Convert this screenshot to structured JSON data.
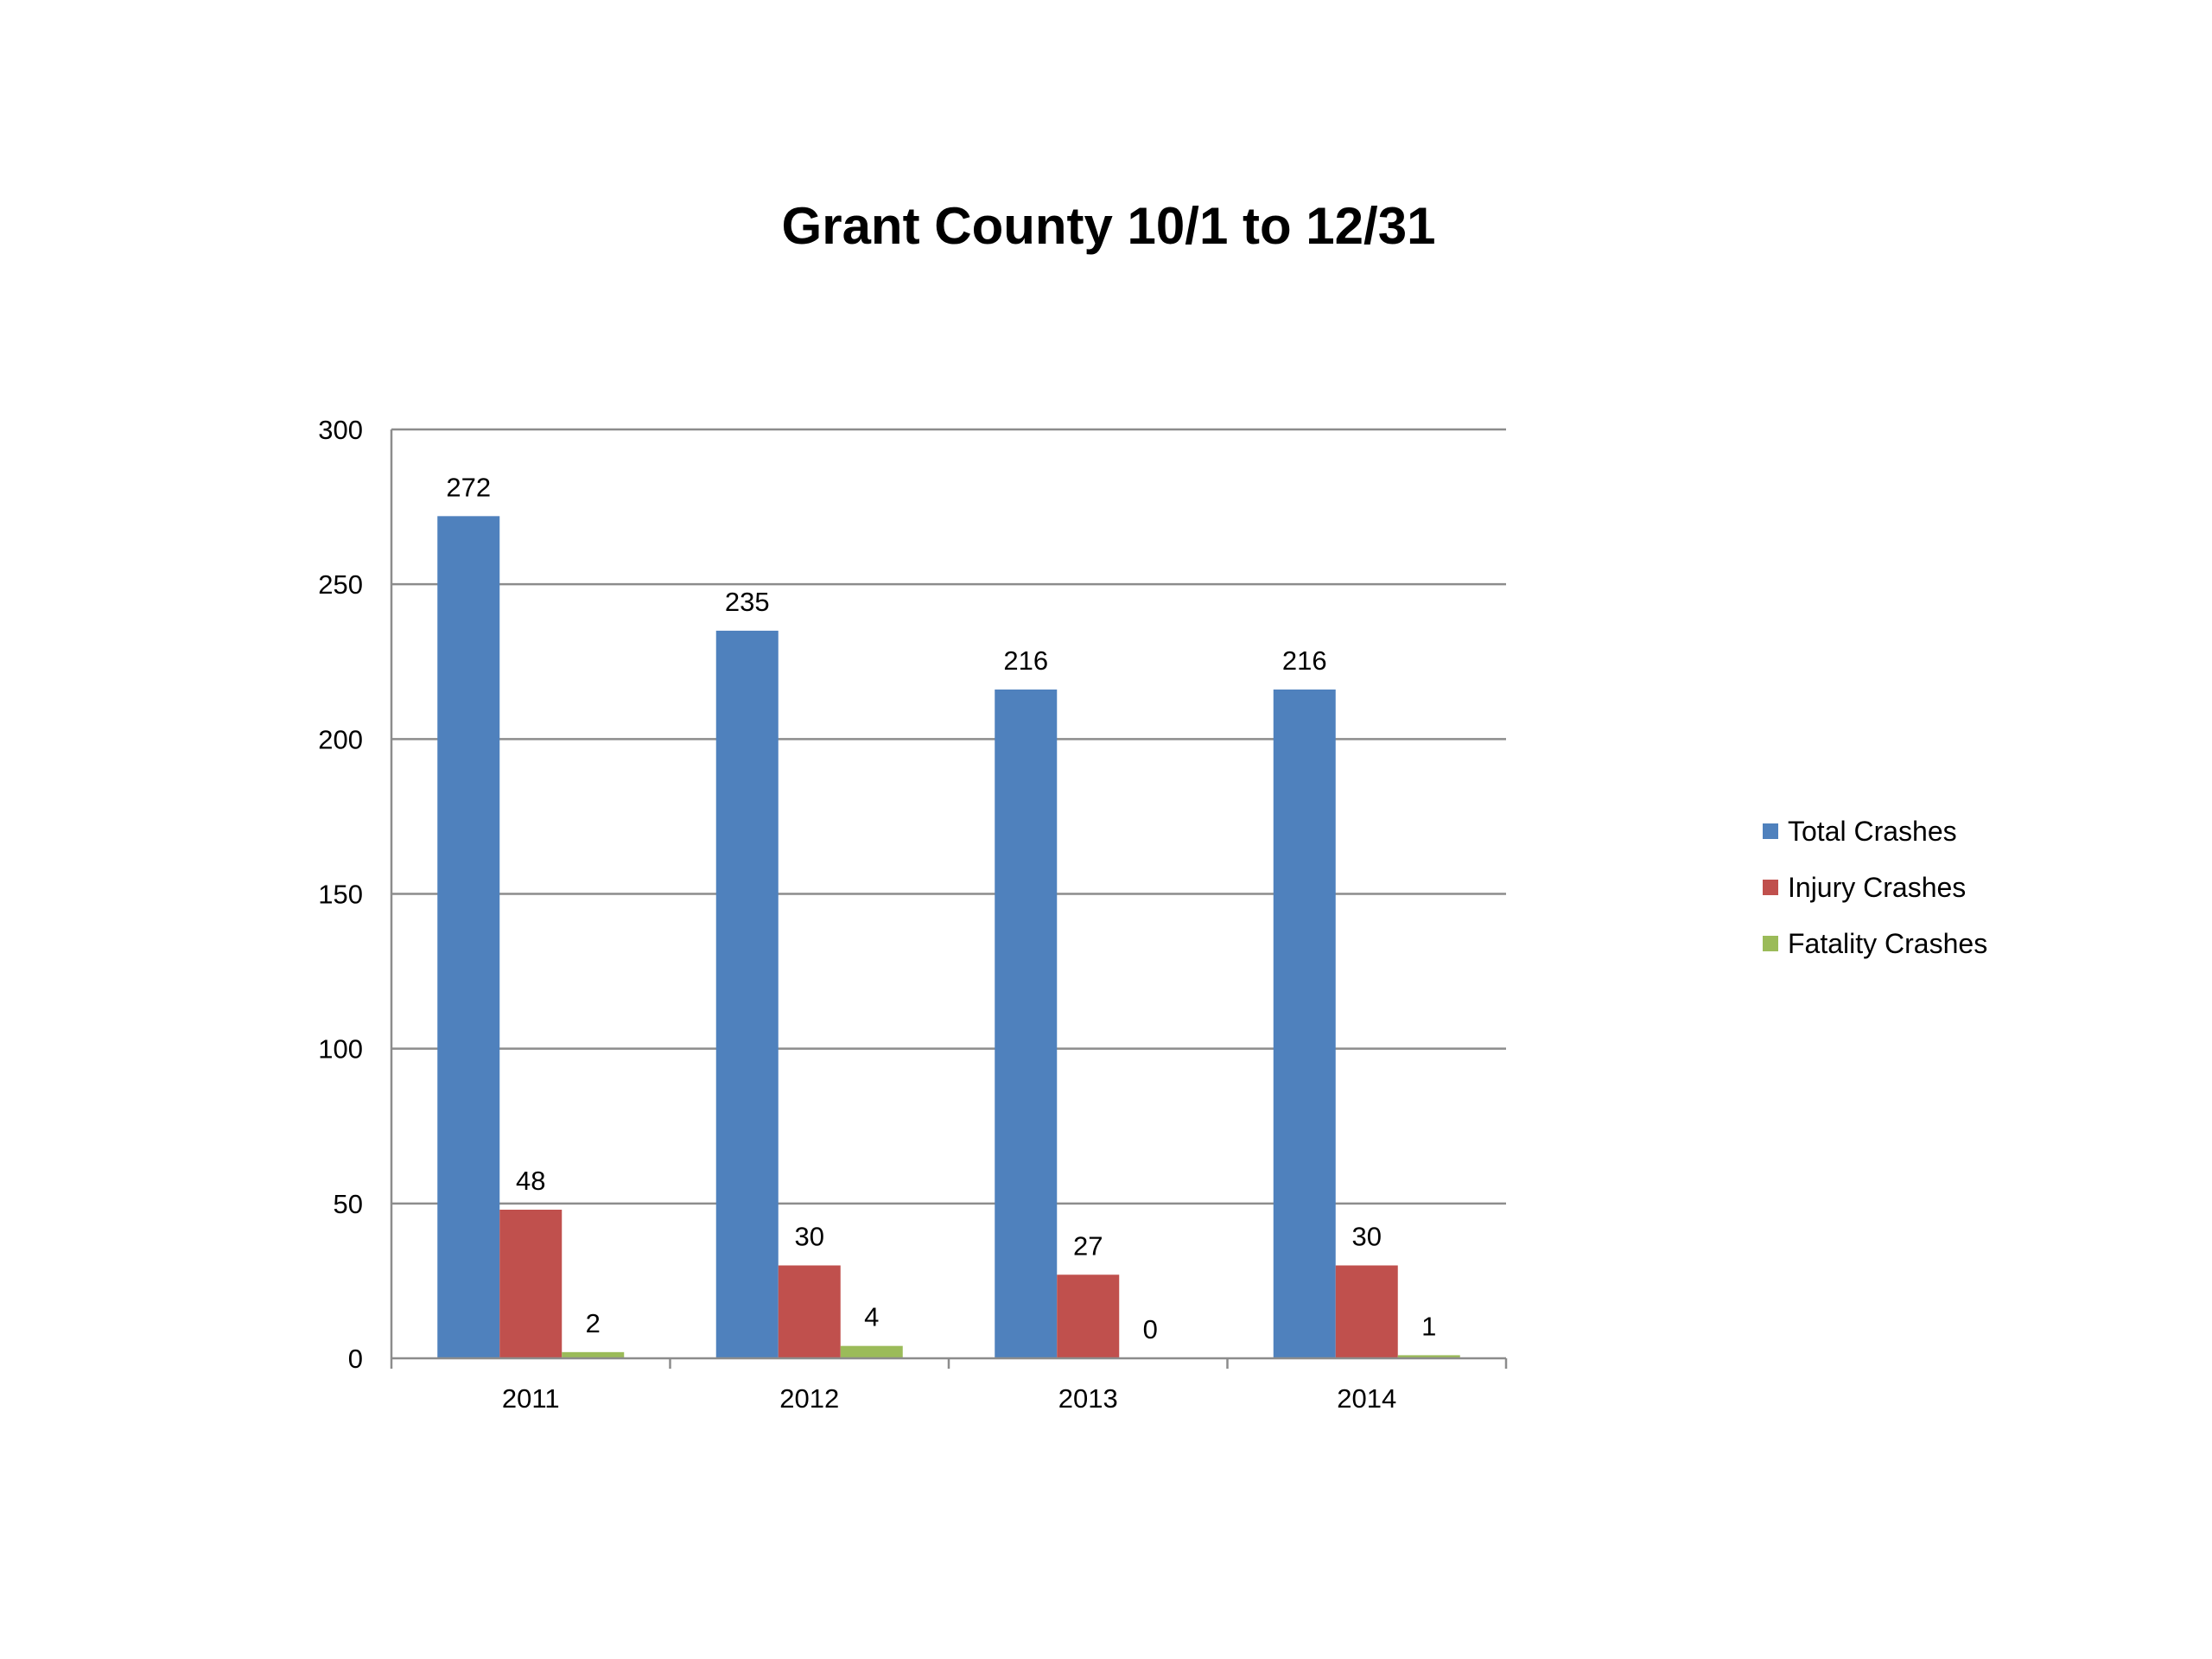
{
  "chart_data": {
    "type": "bar",
    "title": "Grant County 10/1 to 12/31",
    "xlabel": "",
    "ylabel": "",
    "categories": [
      "2011",
      "2012",
      "2013",
      "2014"
    ],
    "series": [
      {
        "name": "Total Crashes",
        "color": "#4F81BD",
        "values": [
          272,
          235,
          216,
          216
        ]
      },
      {
        "name": "Injury Crashes",
        "color": "#C0504D",
        "values": [
          48,
          30,
          27,
          30
        ]
      },
      {
        "name": "Fatality Crashes",
        "color": "#9BBB59",
        "values": [
          2,
          4,
          0,
          1
        ]
      }
    ],
    "ylim": [
      0,
      300
    ],
    "yticks": [
      0,
      50,
      100,
      150,
      200,
      250,
      300
    ],
    "grid": true,
    "data_labels": true,
    "legend_position": "right"
  }
}
